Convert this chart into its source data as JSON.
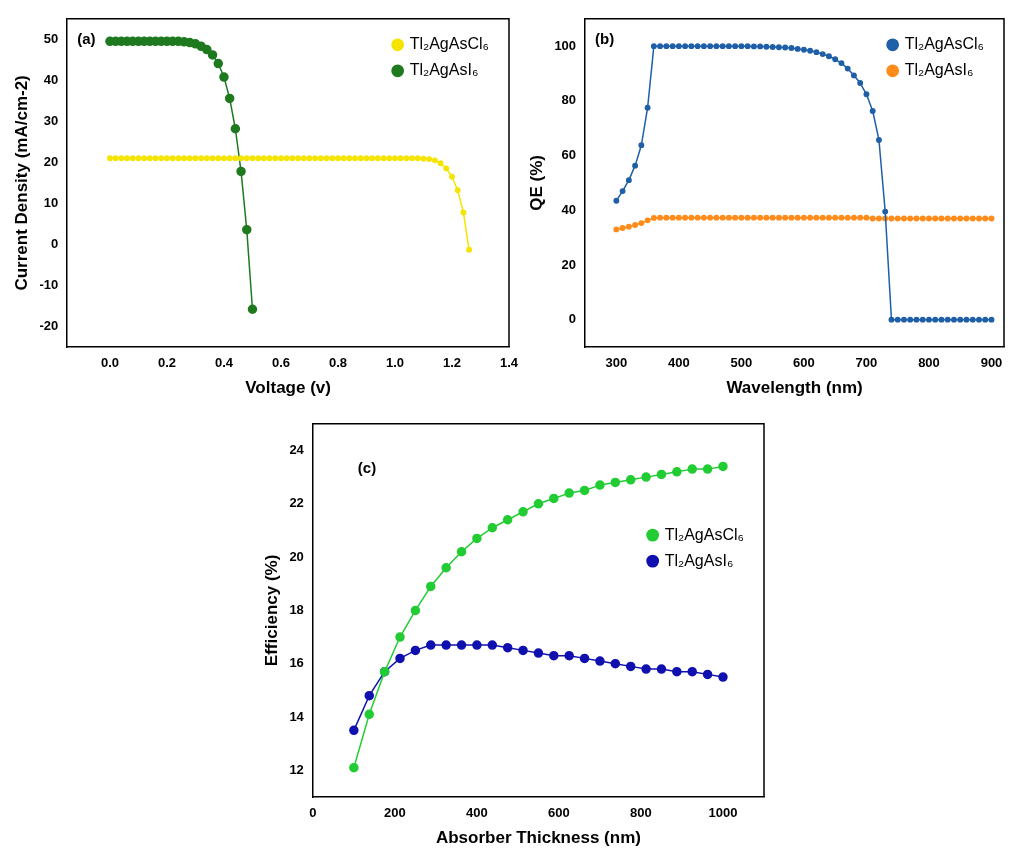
{
  "chart_data": [
    {
      "type": "line",
      "xlabel": "Voltage (v)",
      "ylabel": "Current Density (mA/cm-2)",
      "annotations": [
        "(a)"
      ],
      "xlim": [
        -0.15,
        1.4
      ],
      "ylim": [
        -25,
        55
      ],
      "xticks": [
        {
          "value": 0,
          "label": "0.0"
        },
        0.2,
        0.4,
        0.6,
        0.8,
        {
          "value": 1,
          "label": "1.0"
        },
        1.2,
        1.4
      ],
      "yticks": [
        -20,
        -10,
        0,
        10,
        20,
        30,
        40,
        50
      ],
      "grid": false,
      "legend": "top right",
      "marker": "circle",
      "line_style": "solid",
      "series": [
        {
          "name": "Tl₂AgAsCl₆",
          "color": "#f5e400",
          "x": [
            0,
            0.02,
            0.04,
            0.06,
            0.08,
            0.1,
            0.12,
            0.14,
            0.16,
            0.18,
            0.2,
            0.22,
            0.24,
            0.26,
            0.28,
            0.3,
            0.32,
            0.34,
            0.36,
            0.38,
            0.4,
            0.42,
            0.44,
            0.46,
            0.48,
            0.5,
            0.52,
            0.54,
            0.56,
            0.58,
            0.6,
            0.62,
            0.64,
            0.66,
            0.68,
            0.7,
            0.72,
            0.74,
            0.76,
            0.78,
            0.8,
            0.82,
            0.84,
            0.86,
            0.88,
            0.9,
            0.92,
            0.94,
            0.96,
            0.98,
            1,
            1.02,
            1.04,
            1.06,
            1.08,
            1.1,
            1.12,
            1.14,
            1.16,
            1.18,
            1.2,
            1.22,
            1.24,
            1.26
          ],
          "values": [
            21,
            21,
            21,
            21,
            21,
            21,
            21,
            21,
            21,
            21,
            21,
            21,
            21,
            21,
            21,
            21,
            21,
            21,
            21,
            21,
            21,
            21,
            21,
            21,
            21,
            21,
            21,
            21,
            21,
            21,
            21,
            21,
            21,
            21,
            21,
            21,
            21,
            21,
            21,
            21,
            21,
            21,
            21,
            21,
            21,
            21,
            21,
            21,
            21,
            21,
            21,
            21,
            21,
            21,
            21,
            20.9,
            20.8,
            20.5,
            19.8,
            18.5,
            16.5,
            13.2,
            7.8,
            -1.3
          ]
        },
        {
          "name": "Tl₂AgAsI₆",
          "color": "#1f7a1f",
          "x": [
            0,
            0.02,
            0.04,
            0.06,
            0.08,
            0.1,
            0.12,
            0.14,
            0.16,
            0.18,
            0.2,
            0.22,
            0.24,
            0.26,
            0.28,
            0.3,
            0.32,
            0.34,
            0.36,
            0.38,
            0.4,
            0.42,
            0.44,
            0.46,
            0.48,
            0.5
          ],
          "values": [
            49.5,
            49.5,
            49.5,
            49.5,
            49.5,
            49.5,
            49.5,
            49.5,
            49.5,
            49.5,
            49.5,
            49.5,
            49.5,
            49.4,
            49.2,
            48.9,
            48.3,
            47.5,
            46.2,
            44.1,
            40.8,
            35.6,
            28.2,
            17.8,
            3.6,
            -15.8
          ]
        }
      ]
    },
    {
      "type": "line",
      "xlabel": "Wavelength (nm)",
      "ylabel": "QE (%)",
      "annotations": [
        "(b)"
      ],
      "xlim": [
        250,
        920
      ],
      "ylim": [
        -10,
        110
      ],
      "xticks": [
        300,
        400,
        500,
        600,
        700,
        800,
        900
      ],
      "yticks": [
        0,
        20,
        40,
        60,
        80,
        100
      ],
      "grid": false,
      "legend": "top right",
      "marker": "circle",
      "line_style": "solid",
      "series": [
        {
          "name": "Tl₂AgAsCl₆",
          "color": "#1f5fa8",
          "x": [
            300,
            310,
            320,
            330,
            340,
            350,
            360,
            370,
            380,
            390,
            400,
            410,
            420,
            430,
            440,
            450,
            460,
            470,
            480,
            490,
            500,
            510,
            520,
            530,
            540,
            550,
            560,
            570,
            580,
            590,
            600,
            610,
            620,
            630,
            640,
            650,
            660,
            670,
            680,
            690,
            700,
            710,
            720,
            730,
            740,
            750,
            760,
            770,
            780,
            790,
            800,
            810,
            820,
            830,
            840,
            850,
            860,
            870,
            880,
            890,
            900
          ],
          "values": [
            43.5,
            47,
            51,
            56.3,
            63.8,
            77.5,
            100,
            100,
            100,
            100,
            100,
            100,
            100,
            100,
            100,
            100,
            100,
            100,
            100,
            100,
            100,
            100,
            99.9,
            99.9,
            99.8,
            99.7,
            99.6,
            99.5,
            99.3,
            99,
            98.7,
            98.3,
            97.8,
            97.1,
            96.3,
            95.2,
            93.8,
            91.8,
            89.3,
            86.5,
            82.4,
            76.3,
            65.7,
            39.5,
            0,
            0,
            0,
            0,
            0,
            0,
            0,
            0,
            0,
            0,
            0,
            0,
            0,
            0,
            0,
            0,
            0
          ]
        },
        {
          "name": "Tl₂AgAsI₆",
          "color": "#ff8c1a",
          "x": [
            300,
            310,
            320,
            330,
            340,
            350,
            360,
            370,
            380,
            390,
            400,
            410,
            420,
            430,
            440,
            450,
            460,
            470,
            480,
            490,
            500,
            510,
            520,
            530,
            540,
            550,
            560,
            570,
            580,
            590,
            600,
            610,
            620,
            630,
            640,
            650,
            660,
            670,
            680,
            690,
            700,
            710,
            720,
            730,
            740,
            750,
            760,
            770,
            780,
            790,
            800,
            810,
            820,
            830,
            840,
            850,
            860,
            870,
            880,
            890,
            900
          ],
          "values": [
            33,
            33.5,
            34,
            34.6,
            35.3,
            36.3,
            37.2,
            37.3,
            37.3,
            37.3,
            37.3,
            37.3,
            37.3,
            37.3,
            37.3,
            37.3,
            37.3,
            37.3,
            37.3,
            37.3,
            37.3,
            37.3,
            37.3,
            37.3,
            37.3,
            37.3,
            37.3,
            37.3,
            37.3,
            37.3,
            37.3,
            37.3,
            37.3,
            37.3,
            37.3,
            37.3,
            37.3,
            37.3,
            37.3,
            37.3,
            37.3,
            37,
            37,
            37,
            37,
            37,
            37,
            37,
            37,
            37,
            37,
            37,
            37,
            37,
            37,
            37,
            37,
            37,
            37,
            37,
            37
          ]
        }
      ]
    },
    {
      "type": "line",
      "xlabel": "Absorber Thickness (nm)",
      "ylabel": "Efficiency (%)",
      "annotations": [
        "(c)"
      ],
      "xlim": [
        0,
        1100
      ],
      "ylim": [
        11,
        25
      ],
      "xticks": [
        0,
        200,
        400,
        600,
        800,
        1000
      ],
      "yticks": [
        12,
        14,
        16,
        18,
        20,
        22,
        24
      ],
      "grid": false,
      "legend": "right",
      "marker": "circle",
      "line_style": "solid",
      "series": [
        {
          "name": "Tl₂AgAsCl₆",
          "color": "#22cc33",
          "x": [
            100,
            137.5,
            175,
            212.5,
            250,
            287.5,
            325,
            362.5,
            400,
            437.5,
            475,
            512.5,
            550,
            587.5,
            625,
            662.5,
            700,
            737.5,
            775,
            812.5,
            850,
            887.5,
            925,
            962.5,
            1000
          ],
          "values": [
            12.1,
            14.1,
            15.7,
            17,
            18,
            18.9,
            19.6,
            20.2,
            20.7,
            21.1,
            21.4,
            21.7,
            22,
            22.2,
            22.4,
            22.5,
            22.7,
            22.8,
            22.9,
            23,
            23.1,
            23.2,
            23.3,
            23.3,
            23.4
          ]
        },
        {
          "name": "Tl₂AgAsI₆",
          "color": "#1010b0",
          "x": [
            100,
            137.5,
            175,
            212.5,
            250,
            287.5,
            325,
            362.5,
            400,
            437.5,
            475,
            512.5,
            550,
            587.5,
            625,
            662.5,
            700,
            737.5,
            775,
            812.5,
            850,
            887.5,
            925,
            962.5,
            1000
          ],
          "values": [
            13.5,
            14.8,
            15.7,
            16.2,
            16.5,
            16.7,
            16.7,
            16.7,
            16.7,
            16.7,
            16.6,
            16.5,
            16.4,
            16.3,
            16.3,
            16.2,
            16.1,
            16,
            15.9,
            15.8,
            15.8,
            15.7,
            15.7,
            15.6,
            15.5
          ]
        }
      ]
    }
  ]
}
